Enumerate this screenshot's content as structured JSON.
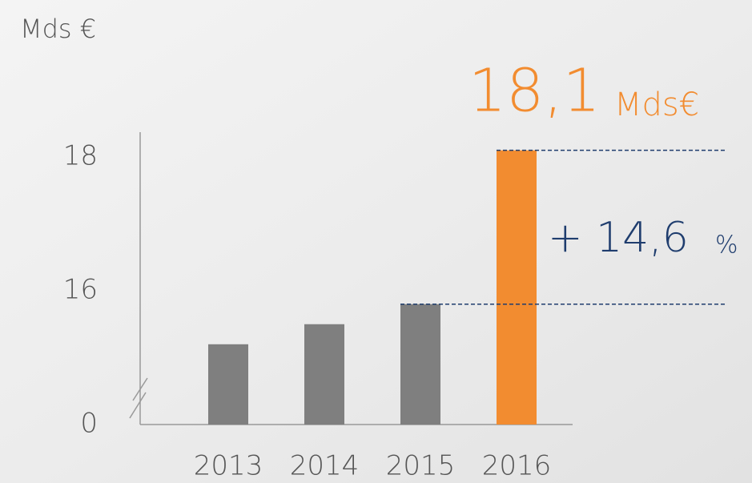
{
  "chart_data": {
    "type": "bar",
    "y_label": "Mds €",
    "categories": [
      "2013",
      "2014",
      "2015",
      "2016"
    ],
    "values": [
      15.2,
      15.5,
      15.8,
      18.1
    ],
    "colors": [
      "#7f7f7f",
      "#7f7f7f",
      "#7f7f7f",
      "#f28c30"
    ],
    "ylim": [
      0,
      18.5
    ],
    "axis_break": [
      0,
      14
    ],
    "yticks": [
      0,
      16,
      18
    ],
    "annotations": {
      "total_label": "18,1",
      "total_unit": "Mds€",
      "growth_label": "+ 14,6",
      "growth_unit": "%"
    }
  }
}
